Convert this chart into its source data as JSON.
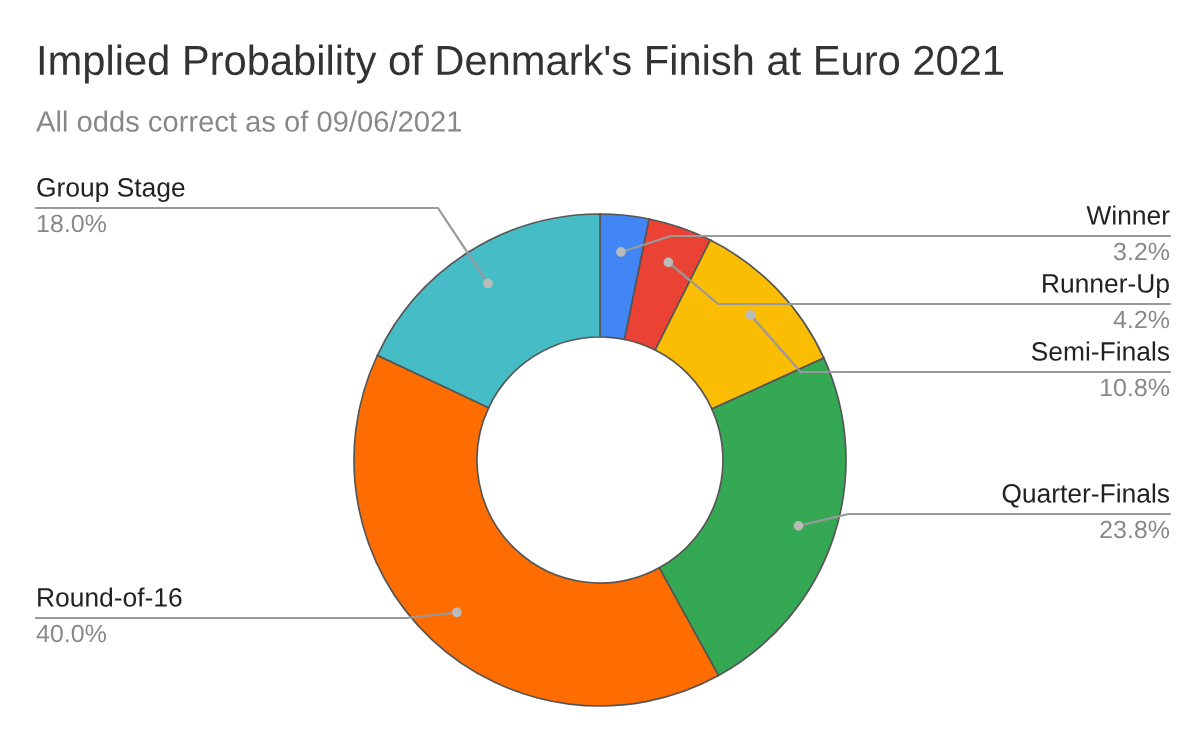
{
  "chart_data": {
    "type": "donut",
    "title": "Implied Probability of Denmark's Finish at Euro 2021",
    "subtitle": "All odds correct as of 09/06/2021",
    "categories": [
      "Winner",
      "Runner-Up",
      "Semi-Finals",
      "Quarter-Finals",
      "Round-of-16",
      "Group Stage"
    ],
    "values": [
      3.2,
      4.2,
      10.8,
      23.8,
      40.0,
      18.0
    ],
    "value_labels": [
      "3.2%",
      "4.2%",
      "10.8%",
      "23.8%",
      "40.0%",
      "18.0%"
    ],
    "colors": [
      "#4285f4",
      "#ea4335",
      "#fbbc04",
      "#34a853",
      "#ff6d01",
      "#46bdc6"
    ],
    "legend": false
  }
}
